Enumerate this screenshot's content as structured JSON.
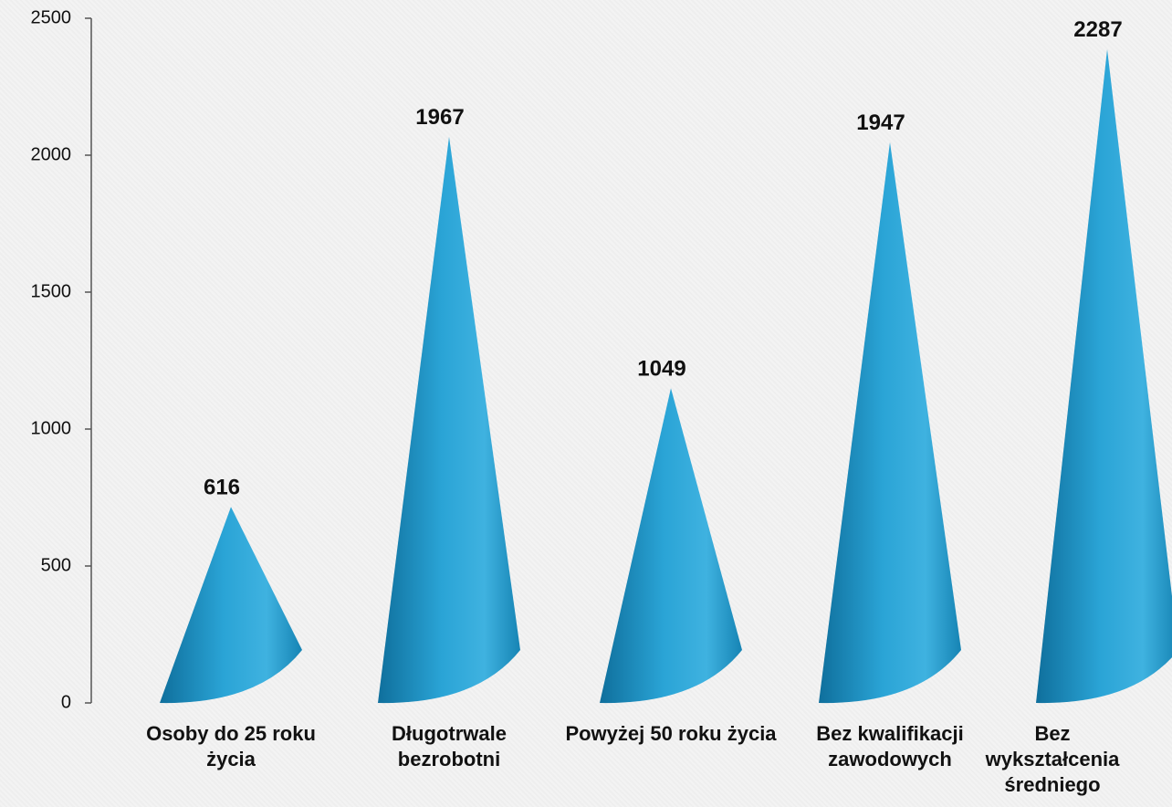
{
  "chart_data": {
    "type": "cone",
    "categories": [
      "Osoby do 25 roku życia",
      "Długotrwale bezrobotni",
      "Powyżej 50 roku życia",
      "Bez kwalifikacji zawodowych",
      "Bez wykształcenia średniego"
    ],
    "values": [
      616,
      1967,
      1049,
      1947,
      2287
    ],
    "color": "#1e93c4",
    "ylim": [
      0,
      2500
    ],
    "yticks": [
      0,
      500,
      1000,
      1500,
      2000,
      2500
    ],
    "grid": false
  }
}
